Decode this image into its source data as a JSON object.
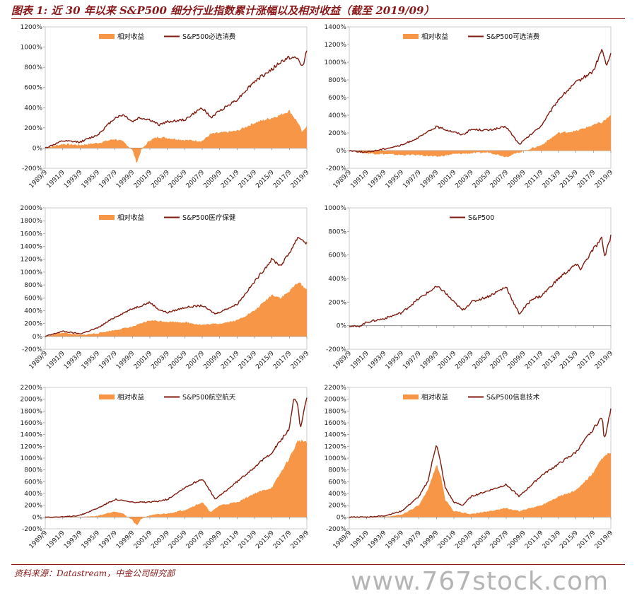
{
  "header": {
    "title": "图表 1: 近 30 年以来 S&P500 细分行业指数累计涨幅以及相对收益（截至 2019/09）"
  },
  "footer": {
    "source": "资料来源：Datastream，中金公司研究部",
    "watermark": "www.767stock.com"
  },
  "colors": {
    "relative": "#f79646",
    "index": "#7f1b0f",
    "title": "#8a1a1a"
  },
  "chart_data": [
    {
      "id": "staples",
      "type": "area+line",
      "legend": [
        "相对收益",
        "S&P500必选消费"
      ],
      "ylim": [
        -200,
        1200
      ],
      "yticks": [
        -200,
        0,
        200,
        400,
        600,
        800,
        1000,
        1200
      ],
      "xticks": [
        "1989/9",
        "1991/9",
        "1993/9",
        "1995/9",
        "1997/9",
        "1999/9",
        "2001/9",
        "2003/9",
        "2005/9",
        "2007/9",
        "2009/9",
        "2011/9",
        "2013/9",
        "2015/9",
        "2017/9",
        "2019/9"
      ],
      "series": [
        {
          "name": "相对收益",
          "kind": "area",
          "x": [
            1989.75,
            1991.75,
            1993.75,
            1995.75,
            1997.75,
            1998.75,
            1999.75,
            2000.25,
            2000.75,
            2001.75,
            2002.75,
            2003.75,
            2005.75,
            2007.75,
            2008.75,
            2009.75,
            2011.75,
            2013.75,
            2015.75,
            2016.75,
            2017.75,
            2018.75,
            2019.25,
            2019.75
          ],
          "y": [
            0,
            40,
            30,
            50,
            90,
            60,
            -20,
            -150,
            -20,
            80,
            110,
            100,
            80,
            70,
            140,
            150,
            170,
            250,
            300,
            330,
            370,
            250,
            150,
            230
          ]
        },
        {
          "name": "S&P500必选消费",
          "kind": "line",
          "x": [
            1989.75,
            1991.75,
            1993.75,
            1995.75,
            1997.75,
            1998.75,
            1999.75,
            2000.5,
            2001.75,
            2002.75,
            2003.75,
            2005.75,
            2007.75,
            2008.75,
            2009.75,
            2011.75,
            2013.75,
            2015.75,
            2016.75,
            2017.75,
            2018.75,
            2019.25,
            2019.75
          ],
          "y": [
            0,
            70,
            60,
            130,
            300,
            330,
            260,
            300,
            280,
            230,
            260,
            280,
            400,
            300,
            370,
            480,
            660,
            780,
            850,
            900,
            880,
            800,
            970
          ]
        }
      ]
    },
    {
      "id": "discretionary",
      "type": "area+line",
      "legend": [
        "相对收益",
        "S&P500可选消费"
      ],
      "ylim": [
        -200,
        1400
      ],
      "yticks": [
        -200,
        0,
        200,
        400,
        600,
        800,
        1000,
        1200,
        1400
      ],
      "xticks": [
        "1989/9",
        "1991/9",
        "1993/9",
        "1995/9",
        "1997/9",
        "1999/9",
        "2001/9",
        "2003/9",
        "2005/9",
        "2007/9",
        "2009/9",
        "2011/9",
        "2013/9",
        "2015/9",
        "2017/9",
        "2019/9"
      ],
      "series": [
        {
          "name": "相对收益",
          "kind": "area",
          "x": [
            1989.75,
            1991.75,
            1993.75,
            1995.75,
            1997.75,
            1999.75,
            2001.75,
            2003.75,
            2005.75,
            2007.75,
            2009.25,
            2011.75,
            2013.75,
            2015.75,
            2017.75,
            2018.75,
            2019.75
          ],
          "y": [
            0,
            -30,
            -40,
            -50,
            -50,
            -70,
            -40,
            -30,
            -20,
            -70,
            -20,
            60,
            200,
            220,
            290,
            320,
            400
          ]
        },
        {
          "name": "S&P500可选消费",
          "kind": "line",
          "x": [
            1989.75,
            1991.75,
            1993.75,
            1995.75,
            1997.75,
            1999.75,
            2001.75,
            2002.75,
            2003.75,
            2005.75,
            2007.75,
            2009.25,
            2011.75,
            2013.75,
            2015.75,
            2017.75,
            2018.75,
            2019.25,
            2019.75
          ],
          "y": [
            0,
            -20,
            20,
            60,
            150,
            270,
            210,
            180,
            240,
            230,
            270,
            70,
            280,
            580,
            770,
            900,
            1150,
            950,
            1100
          ]
        }
      ]
    },
    {
      "id": "healthcare",
      "type": "area+line",
      "legend": [
        "相对收益",
        "S&P500医疗保健"
      ],
      "ylim": [
        -200,
        2000
      ],
      "yticks": [
        -200,
        0,
        200,
        400,
        600,
        800,
        1000,
        1200,
        1400,
        1600,
        1800,
        2000
      ],
      "xticks": [
        "1989/9",
        "1991/9",
        "1993/9",
        "1995/9",
        "1997/9",
        "1999/9",
        "2001/9",
        "2003/9",
        "2005/9",
        "2007/9",
        "2009/9",
        "2011/9",
        "2013/9",
        "2015/9",
        "2017/9",
        "2019/9"
      ],
      "series": [
        {
          "name": "相对收益",
          "kind": "area",
          "x": [
            1989.75,
            1991.75,
            1993.75,
            1995.75,
            1997.75,
            1999.75,
            2001.75,
            2003.75,
            2005.75,
            2007.75,
            2009.75,
            2011.75,
            2013.75,
            2015.75,
            2016.75,
            2017.75,
            2018.75,
            2019.75
          ],
          "y": [
            0,
            60,
            20,
            50,
            100,
            150,
            250,
            230,
            220,
            180,
            200,
            250,
            400,
            650,
            600,
            700,
            850,
            730
          ]
        },
        {
          "name": "S&P500医疗保健",
          "kind": "line",
          "x": [
            1989.75,
            1991.75,
            1993.75,
            1995.75,
            1997.75,
            1999.75,
            2001.75,
            2002.75,
            2003.75,
            2005.75,
            2007.75,
            2009.25,
            2011.75,
            2013.75,
            2015.75,
            2016.75,
            2017.75,
            2018.75,
            2019.75
          ],
          "y": [
            0,
            80,
            40,
            130,
            300,
            430,
            530,
            420,
            370,
            450,
            480,
            350,
            500,
            850,
            1200,
            1100,
            1300,
            1550,
            1450
          ]
        }
      ]
    },
    {
      "id": "sp500",
      "type": "line",
      "legend": [
        "S&P500"
      ],
      "ylim": [
        -200,
        1000
      ],
      "yticks": [
        -200,
        0,
        200,
        400,
        600,
        800,
        1000
      ],
      "xticks": [
        "1989/9",
        "1991/9",
        "1993/9",
        "1995/9",
        "1997/9",
        "1999/9",
        "2001/9",
        "2003/9",
        "2005/9",
        "2007/9",
        "2009/9",
        "2011/9",
        "2013/9",
        "2015/9",
        "2017/9",
        "2019/9"
      ],
      "series": [
        {
          "name": "S&P500",
          "kind": "line",
          "x": [
            1989.75,
            1990.75,
            1991.75,
            1993.75,
            1995.75,
            1997.75,
            1998.75,
            1999.75,
            2000.5,
            2001.75,
            2002.75,
            2003.75,
            2005.75,
            2007.75,
            2008.75,
            2009.25,
            2010.75,
            2011.75,
            2013.75,
            2015.75,
            2016.25,
            2017.75,
            2018.75,
            2019.0,
            2019.75
          ],
          "y": [
            0,
            -10,
            30,
            60,
            110,
            230,
            280,
            330,
            300,
            200,
            130,
            200,
            250,
            330,
            170,
            100,
            230,
            250,
            400,
            520,
            480,
            650,
            740,
            580,
            760
          ]
        }
      ]
    },
    {
      "id": "aerospace",
      "type": "area+line",
      "legend": [
        "相对收益",
        "S&P500航空航天"
      ],
      "ylim": [
        -200,
        2200
      ],
      "yticks": [
        -200,
        0,
        200,
        400,
        600,
        800,
        1000,
        1200,
        1400,
        1600,
        1800,
        2000,
        2200
      ],
      "xticks": [
        "1989/9",
        "1991/9",
        "1993/9",
        "1995/9",
        "1997/9",
        "1999/9",
        "2001/9",
        "2003/9",
        "2005/9",
        "2007/9",
        "2009/9",
        "2011/9",
        "2013/9",
        "2015/9",
        "2017/9",
        "2019/9"
      ],
      "series": [
        {
          "name": "相对收益",
          "kind": "area",
          "x": [
            1989.75,
            1991.75,
            1993.75,
            1995.75,
            1997.75,
            1998.75,
            1999.75,
            2000.25,
            2000.75,
            2001.75,
            2003.75,
            2005.75,
            2007.75,
            2008.75,
            2009.75,
            2011.75,
            2013.75,
            2015.75,
            2017.75,
            2018.75,
            2019.75
          ],
          "y": [
            0,
            0,
            0,
            20,
            100,
            50,
            -50,
            -150,
            -30,
            30,
            60,
            120,
            250,
            80,
            200,
            250,
            400,
            500,
            1000,
            1300,
            1280
          ]
        },
        {
          "name": "S&P500航空航天",
          "kind": "line",
          "x": [
            1989.75,
            1991.75,
            1993.75,
            1995.75,
            1997.75,
            1999.75,
            2001.75,
            2003.75,
            2005.75,
            2007.75,
            2009.25,
            2011.75,
            2013.75,
            2015.75,
            2017.75,
            2018.25,
            2018.75,
            2019.0,
            2019.75
          ],
          "y": [
            0,
            0,
            30,
            150,
            300,
            250,
            250,
            300,
            500,
            650,
            300,
            600,
            850,
            1100,
            1500,
            2000,
            1900,
            1500,
            2050
          ]
        }
      ]
    },
    {
      "id": "infotech",
      "type": "area+line",
      "legend": [
        "相对收益",
        "S&P500信息技术"
      ],
      "ylim": [
        -200,
        2200
      ],
      "yticks": [
        -200,
        0,
        200,
        400,
        600,
        800,
        1000,
        1200,
        1400,
        1600,
        1800,
        2000,
        2200
      ],
      "xticks": [
        "1989/9",
        "1991/9",
        "1993/9",
        "1995/9",
        "1997/9",
        "1999/9",
        "2001/9",
        "2003/9",
        "2005/9",
        "2007/9",
        "2009/9",
        "2011/9",
        "2013/9",
        "2015/9",
        "2017/9",
        "2019/9"
      ],
      "series": [
        {
          "name": "相对收益",
          "kind": "area",
          "x": [
            1989.75,
            1991.75,
            1993.75,
            1995.75,
            1997.75,
            1998.75,
            1999.75,
            2000.25,
            2000.75,
            2001.75,
            2003.75,
            2005.75,
            2007.75,
            2009.25,
            2011.75,
            2013.75,
            2015.75,
            2017.75,
            2018.75,
            2019.75
          ],
          "y": [
            0,
            0,
            0,
            40,
            200,
            450,
            900,
            700,
            300,
            100,
            50,
            100,
            150,
            100,
            200,
            350,
            450,
            750,
            1000,
            1100
          ]
        },
        {
          "name": "S&P500信息技术",
          "kind": "line",
          "x": [
            1989.75,
            1991.75,
            1993.75,
            1995.75,
            1997.75,
            1998.75,
            1999.75,
            2000.25,
            2000.75,
            2001.75,
            2002.75,
            2003.75,
            2005.75,
            2007.75,
            2009.25,
            2011.75,
            2013.75,
            2015.75,
            2017.75,
            2018.75,
            2019.0,
            2019.75
          ],
          "y": [
            0,
            0,
            20,
            100,
            350,
            600,
            1250,
            900,
            500,
            250,
            200,
            350,
            450,
            550,
            350,
            700,
            900,
            1100,
            1500,
            1700,
            1300,
            1850
          ]
        }
      ]
    }
  ]
}
